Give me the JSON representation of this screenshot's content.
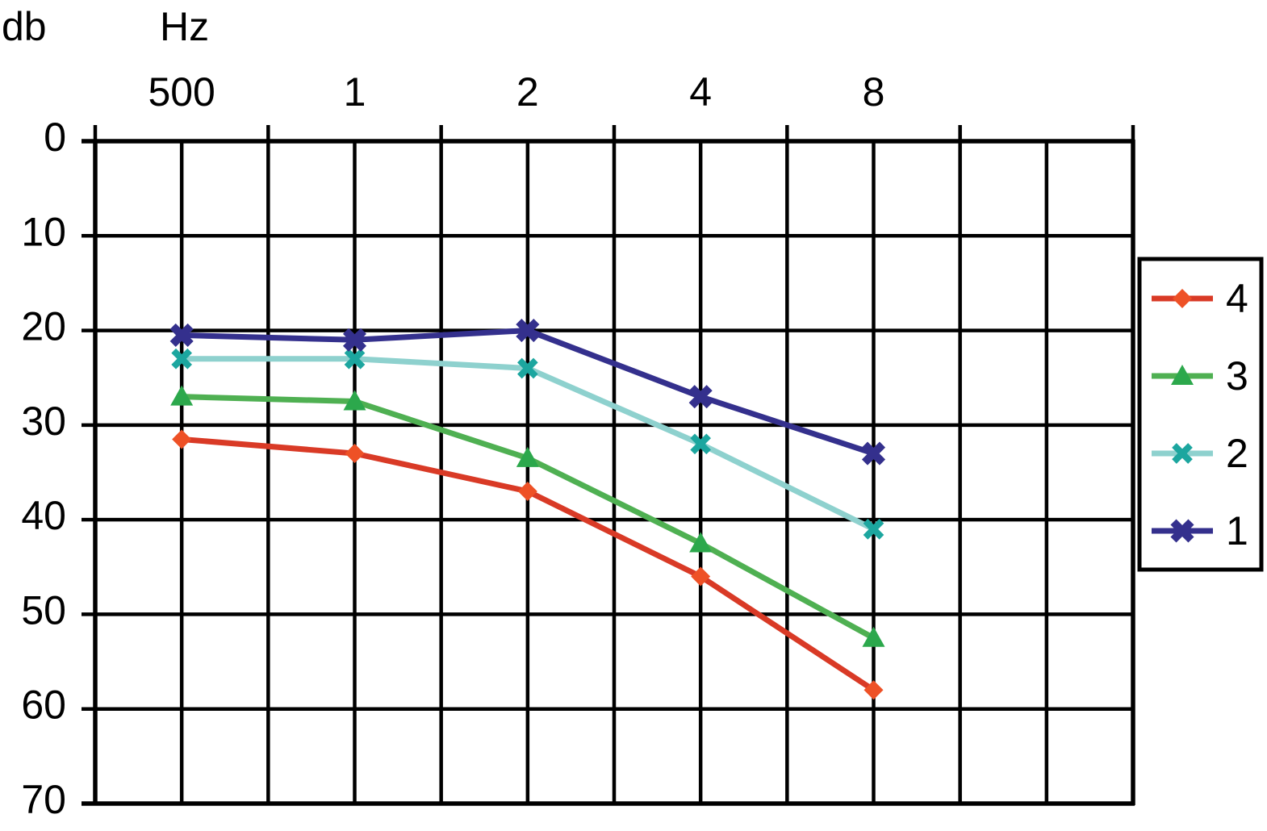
{
  "page": {
    "background": "#ffffff"
  },
  "chart_data": {
    "type": "line",
    "title": "",
    "y_axis_unit_label": "db",
    "x_axis_unit_label": "Hz",
    "categories": [
      "500",
      "1",
      "2",
      "4",
      "8"
    ],
    "y_tick_labels": [
      "0",
      "10",
      "20",
      "30",
      "40",
      "50",
      "60",
      "70"
    ],
    "y_range": [
      0,
      70
    ],
    "y_axis_inverted": true,
    "grid": "on",
    "axis_color": "#000000",
    "text_color": "#000000",
    "legend_position": "right",
    "legend_border_color": "#000000",
    "legend_background": "#ffffff",
    "series": [
      {
        "name": "4",
        "marker": "diamond",
        "line_color": "#d93a26",
        "marker_color": "#ee5126",
        "values": [
          31.5,
          33,
          37,
          46,
          58
        ]
      },
      {
        "name": "3",
        "marker": "triangle",
        "line_color": "#4fb052",
        "marker_color": "#2ca84c",
        "values": [
          27,
          27.5,
          33.5,
          42.5,
          52.5
        ]
      },
      {
        "name": "2",
        "marker": "x",
        "line_color": "#8ed1ce",
        "marker_color": "#1ca69f",
        "values": [
          23,
          23,
          24,
          32,
          41
        ]
      },
      {
        "name": "1",
        "marker": "x-bold",
        "line_color": "#34308d",
        "marker_color": "#34308d",
        "values": [
          20.5,
          21,
          20,
          27,
          33
        ]
      }
    ]
  }
}
